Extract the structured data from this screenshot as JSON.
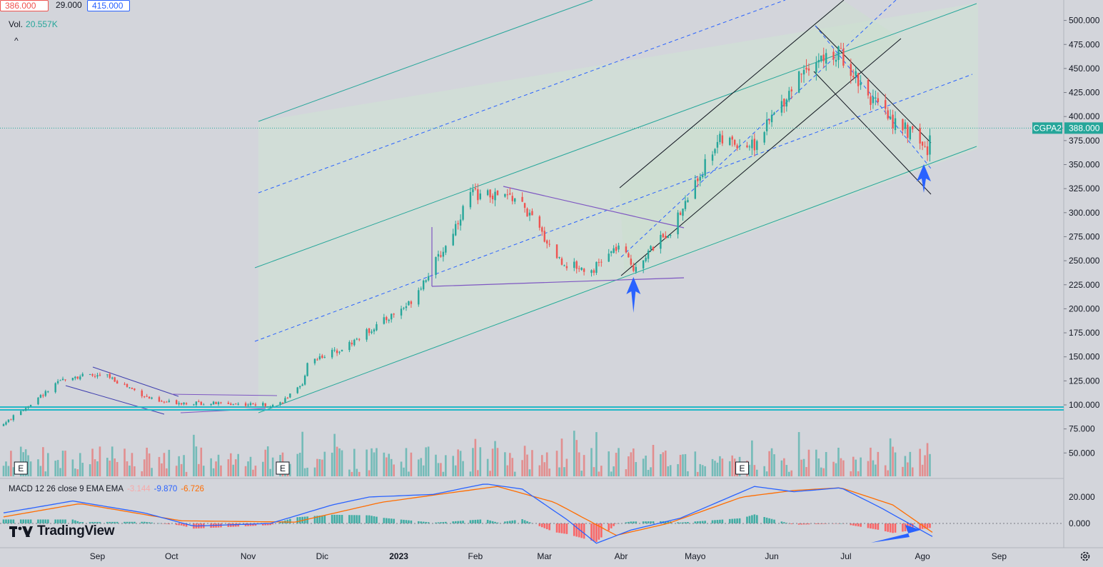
{
  "top_bar": {
    "open": "386.000",
    "change": "29.000",
    "high": "415.000"
  },
  "volume": {
    "label": "Vol.",
    "value": "20.557K"
  },
  "collapse_glyph": "^",
  "macd_legend": {
    "title": "MACD 12 26 close 9 EMA EMA",
    "hist": "-3.144",
    "macd": "-9.870",
    "signal": "-6.726"
  },
  "logo": {
    "text": "TradingView"
  },
  "earnings_marker": "E",
  "colors": {
    "up": "#26a69a",
    "down": "#ef5350",
    "macd": "#2962ff",
    "signal": "#ff6d00",
    "channel": "#26a69a",
    "pitchfork_median": "#2962ff",
    "support": "#22b8c6"
  },
  "chart_data": {
    "type": "candlestick",
    "symbol": "CGPA2",
    "last_price": "388.000",
    "y_axis_ticks": [
      "500.000",
      "475.000",
      "450.000",
      "425.000",
      "400.000",
      "375.000",
      "350.000",
      "325.000",
      "300.000",
      "275.000",
      "250.000",
      "225.000",
      "200.000",
      "175.000",
      "150.000",
      "125.000",
      "100.000",
      "75.000",
      "50.000"
    ],
    "macd_axis_ticks": [
      "20.000",
      "0.000"
    ],
    "x_axis_ticks": [
      "Sep",
      "Oct",
      "Nov",
      "Dic",
      "2023",
      "Feb",
      "Mar",
      "Abr",
      "Mayo",
      "Jun",
      "Jul",
      "Ago",
      "Sep"
    ],
    "price_anchors": [
      [
        "2022-07-25",
        80
      ],
      [
        "2022-08-20",
        130
      ],
      [
        "2022-09-05",
        130
      ],
      [
        "2022-09-25",
        103
      ],
      [
        "2022-11-13",
        100
      ],
      [
        "2022-11-23",
        120
      ],
      [
        "2022-11-25",
        145
      ],
      [
        "2022-12-10",
        160
      ],
      [
        "2023-01-05",
        205
      ],
      [
        "2023-01-20",
        265
      ],
      [
        "2023-01-30",
        320
      ],
      [
        "2023-02-18",
        315
      ],
      [
        "2023-03-08",
        248
      ],
      [
        "2023-03-20",
        240
      ],
      [
        "2023-03-31",
        265
      ],
      [
        "2023-04-06",
        243
      ],
      [
        "2023-04-22",
        285
      ],
      [
        "2023-05-10",
        375
      ],
      [
        "2023-05-25",
        370
      ],
      [
        "2023-06-15",
        455
      ],
      [
        "2023-06-29",
        465
      ],
      [
        "2023-07-15",
        405
      ],
      [
        "2023-07-31",
        375
      ],
      [
        "2023-08-03",
        361
      ],
      [
        "2023-08-05",
        388
      ]
    ],
    "macd_anchors": [
      [
        "2022-07-25",
        8
      ],
      [
        "2022-08-22",
        17
      ],
      [
        "2022-09-20",
        8
      ],
      [
        "2022-10-10",
        -2
      ],
      [
        "2022-11-10",
        0
      ],
      [
        "2022-12-05",
        14
      ],
      [
        "2022-12-20",
        20
      ],
      [
        "2023-01-15",
        22
      ],
      [
        "2023-02-05",
        30
      ],
      [
        "2023-02-20",
        26
      ],
      [
        "2023-03-10",
        3
      ],
      [
        "2023-03-22",
        -15
      ],
      [
        "2023-04-05",
        -5
      ],
      [
        "2023-04-25",
        4
      ],
      [
        "2023-05-25",
        28
      ],
      [
        "2023-06-10",
        24
      ],
      [
        "2023-06-29",
        27
      ],
      [
        "2023-07-15",
        12
      ],
      [
        "2023-08-05",
        -9.87
      ]
    ],
    "signal_anchors": [
      [
        "2022-07-25",
        5
      ],
      [
        "2022-08-25",
        15
      ],
      [
        "2022-10-05",
        2
      ],
      [
        "2022-11-20",
        1
      ],
      [
        "2022-12-25",
        16
      ],
      [
        "2023-01-25",
        24
      ],
      [
        "2023-02-10",
        28
      ],
      [
        "2023-03-05",
        16
      ],
      [
        "2023-03-30",
        -9
      ],
      [
        "2023-04-20",
        0
      ],
      [
        "2023-05-20",
        20
      ],
      [
        "2023-06-10",
        25
      ],
      [
        "2023-06-29",
        27
      ],
      [
        "2023-07-20",
        14
      ],
      [
        "2023-08-05",
        -6.726
      ]
    ],
    "earnings_dates": [
      "2022-08-01",
      "2022-11-15",
      "2023-05-20"
    ],
    "annotations": [
      {
        "type": "arrow-up",
        "date": "2023-04-06"
      },
      {
        "type": "arrow-up",
        "date": "2023-08-05"
      },
      {
        "type": "arrow-right-macd",
        "date": "2023-08-02"
      }
    ]
  }
}
